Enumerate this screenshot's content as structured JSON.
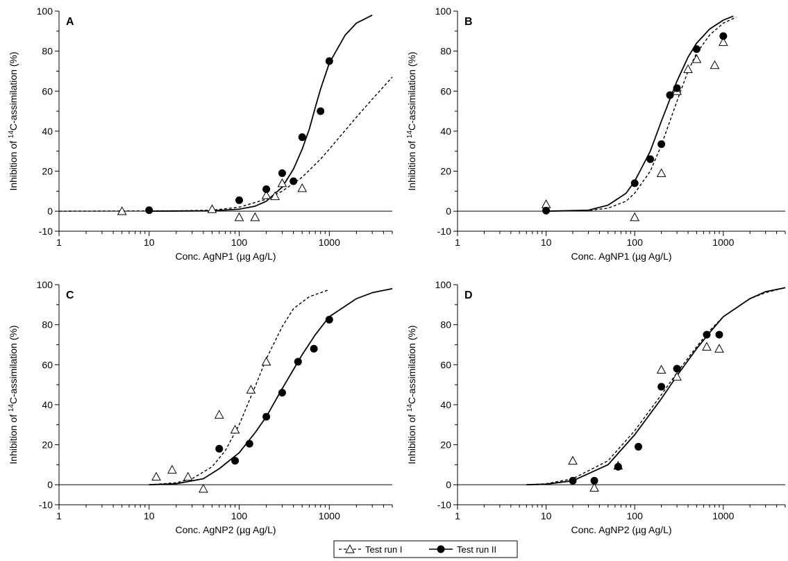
{
  "legend": {
    "series": [
      {
        "name": "Test run I",
        "marker": "open-triangle",
        "line": "dashed"
      },
      {
        "name": "Test run II",
        "marker": "filled-circle",
        "line": "solid"
      }
    ]
  },
  "chart_data": [
    {
      "type": "scatter",
      "panel": "A",
      "xlabel": "Conc. AgNP1 (µg Ag/L)",
      "ylabel_parts": [
        "Inhibition of ",
        "14",
        "C-assimilation (%)"
      ],
      "x_scale": "log",
      "xlim": [
        1,
        5000
      ],
      "x_ticks": [
        1,
        10,
        100,
        1000
      ],
      "x_tick_labels": [
        "1",
        "10",
        "100",
        "1000"
      ],
      "ylim": [
        -10,
        100
      ],
      "y_ticks": [
        -10,
        0,
        20,
        40,
        60,
        80,
        100
      ],
      "y_tick_labels": [
        "-10",
        "0",
        "20",
        "40",
        "60",
        "80",
        "100"
      ],
      "grid": false,
      "series": [
        {
          "name": "Test run I",
          "marker": "open-triangle",
          "line": "dashed",
          "points": [
            [
              5,
              0
            ],
            [
              50,
              1
            ],
            [
              100,
              -3
            ],
            [
              150,
              -3
            ],
            [
              200,
              8
            ],
            [
              250,
              7.5
            ],
            [
              300,
              14
            ],
            [
              500,
              11.5
            ]
          ],
          "fit": [
            [
              1,
              0
            ],
            [
              20,
              0.2
            ],
            [
              50,
              0.5
            ],
            [
              100,
              2
            ],
            [
              200,
              6
            ],
            [
              300,
              10
            ],
            [
              500,
              17
            ],
            [
              800,
              26
            ],
            [
              1000,
              31
            ],
            [
              2000,
              47
            ],
            [
              3000,
              56
            ],
            [
              5000,
              67
            ]
          ]
        },
        {
          "name": "Test run II",
          "marker": "filled-circle",
          "line": "solid",
          "points": [
            [
              10,
              0.5
            ],
            [
              100,
              5.5
            ],
            [
              200,
              11
            ],
            [
              300,
              19
            ],
            [
              400,
              15
            ],
            [
              500,
              37
            ],
            [
              800,
              50
            ],
            [
              1000,
              75
            ]
          ],
          "fit": [
            [
              10,
              0
            ],
            [
              50,
              0.2
            ],
            [
              100,
              1
            ],
            [
              150,
              2.5
            ],
            [
              200,
              5
            ],
            [
              300,
              12
            ],
            [
              400,
              21
            ],
            [
              500,
              31
            ],
            [
              600,
              41
            ],
            [
              700,
              52
            ],
            [
              800,
              61
            ],
            [
              1000,
              74
            ],
            [
              1500,
              88
            ],
            [
              2000,
              94
            ],
            [
              3000,
              98
            ]
          ]
        }
      ]
    },
    {
      "type": "scatter",
      "panel": "B",
      "xlabel": "Conc. AgNP1 (µg Ag/L)",
      "ylabel_parts": [
        "Inhibition of ",
        "14",
        "C-assimilation (%)"
      ],
      "x_scale": "log",
      "xlim": [
        1,
        5000
      ],
      "x_ticks": [
        1,
        10,
        100,
        1000
      ],
      "x_tick_labels": [
        "1",
        "10",
        "100",
        "1000"
      ],
      "ylim": [
        -10,
        100
      ],
      "y_ticks": [
        -10,
        0,
        20,
        40,
        60,
        80,
        100
      ],
      "y_tick_labels": [
        "-10",
        "0",
        "20",
        "40",
        "60",
        "80",
        "100"
      ],
      "grid": false,
      "series": [
        {
          "name": "Test run I",
          "marker": "open-triangle",
          "line": "dashed",
          "points": [
            [
              10,
              3.5
            ],
            [
              100,
              -3
            ],
            [
              200,
              19
            ],
            [
              300,
              60
            ],
            [
              400,
              71
            ],
            [
              500,
              76
            ],
            [
              800,
              73
            ],
            [
              1000,
              84.5
            ]
          ],
          "fit": [
            [
              10,
              0
            ],
            [
              30,
              0.3
            ],
            [
              50,
              1.5
            ],
            [
              80,
              5
            ],
            [
              100,
              9
            ],
            [
              150,
              20
            ],
            [
              200,
              33
            ],
            [
              300,
              55
            ],
            [
              400,
              70
            ],
            [
              500,
              79
            ],
            [
              700,
              88
            ],
            [
              1000,
              94
            ],
            [
              1400,
              97
            ]
          ]
        },
        {
          "name": "Test run II",
          "marker": "filled-circle",
          "line": "solid",
          "points": [
            [
              10,
              0.3
            ],
            [
              100,
              14
            ],
            [
              150,
              26
            ],
            [
              200,
              33.5
            ],
            [
              250,
              58
            ],
            [
              300,
              61.5
            ],
            [
              500,
              81
            ],
            [
              1000,
              87.5
            ]
          ],
          "fit": [
            [
              10,
              0
            ],
            [
              30,
              0.5
            ],
            [
              50,
              3
            ],
            [
              80,
              9
            ],
            [
              100,
              15
            ],
            [
              150,
              30
            ],
            [
              200,
              45
            ],
            [
              300,
              65
            ],
            [
              400,
              77
            ],
            [
              500,
              84
            ],
            [
              700,
              91
            ],
            [
              1000,
              95.5
            ],
            [
              1300,
              97.5
            ]
          ]
        }
      ]
    },
    {
      "type": "scatter",
      "panel": "C",
      "xlabel": "Conc. AgNP2 (µg Ag/L)",
      "ylabel_parts": [
        "Inhibition of ",
        "14",
        "C-assimilation (%)"
      ],
      "x_scale": "log",
      "xlim": [
        1,
        5000
      ],
      "x_ticks": [
        1,
        10,
        100,
        1000
      ],
      "x_tick_labels": [
        "1",
        "10",
        "100",
        "1000"
      ],
      "ylim": [
        -10,
        100
      ],
      "y_ticks": [
        -10,
        0,
        20,
        40,
        60,
        80,
        100
      ],
      "y_tick_labels": [
        "-10",
        "0",
        "20",
        "40",
        "60",
        "80",
        "100"
      ],
      "grid": false,
      "series": [
        {
          "name": "Test run I",
          "marker": "open-triangle",
          "line": "dashed",
          "points": [
            [
              12,
              4
            ],
            [
              18,
              7.5
            ],
            [
              27,
              4
            ],
            [
              40,
              -2
            ],
            [
              60,
              35
            ],
            [
              90,
              27.5
            ],
            [
              135,
              47.5
            ],
            [
              200,
              61.5
            ]
          ],
          "fit": [
            [
              10,
              0
            ],
            [
              20,
              1
            ],
            [
              30,
              3
            ],
            [
              50,
              9
            ],
            [
              70,
              17
            ],
            [
              100,
              30
            ],
            [
              150,
              49
            ],
            [
              200,
              63
            ],
            [
              300,
              79
            ],
            [
              400,
              88
            ],
            [
              600,
              94
            ],
            [
              1000,
              97.5
            ]
          ]
        },
        {
          "name": "Test run II",
          "marker": "filled-circle",
          "line": "solid",
          "points": [
            [
              60,
              18
            ],
            [
              90,
              12
            ],
            [
              130,
              20.5
            ],
            [
              200,
              34
            ],
            [
              300,
              46
            ],
            [
              450,
              61.5
            ],
            [
              675,
              68
            ],
            [
              1000,
              82.5
            ]
          ],
          "fit": [
            [
              10,
              0
            ],
            [
              20,
              0.5
            ],
            [
              40,
              3
            ],
            [
              60,
              8
            ],
            [
              100,
              16
            ],
            [
              150,
              26
            ],
            [
              200,
              34
            ],
            [
              300,
              48
            ],
            [
              500,
              65
            ],
            [
              700,
              75
            ],
            [
              1000,
              84
            ],
            [
              2000,
              93
            ],
            [
              3000,
              96
            ],
            [
              5000,
              98
            ]
          ]
        }
      ]
    },
    {
      "type": "scatter",
      "panel": "D",
      "xlabel": "Conc. AgNP2 (µg Ag/L)",
      "ylabel_parts": [
        "Inhibition of ",
        "14",
        "C-assimilation (%)"
      ],
      "x_scale": "log",
      "xlim": [
        1,
        5000
      ],
      "x_ticks": [
        1,
        10,
        100,
        1000
      ],
      "x_tick_labels": [
        "1",
        "10",
        "100",
        "1000"
      ],
      "ylim": [
        -10,
        100
      ],
      "y_ticks": [
        -10,
        0,
        20,
        40,
        60,
        80,
        100
      ],
      "y_tick_labels": [
        "-10",
        "0",
        "20",
        "40",
        "60",
        "80",
        "100"
      ],
      "grid": false,
      "series": [
        {
          "name": "Test run I",
          "marker": "open-triangle",
          "line": "dashed",
          "points": [
            [
              20,
              12
            ],
            [
              35,
              -1.5
            ],
            [
              65,
              9.5
            ],
            [
              200,
              57.5
            ],
            [
              300,
              54
            ],
            [
              650,
              69
            ],
            [
              900,
              68
            ]
          ],
          "fit": [
            [
              6,
              0
            ],
            [
              10,
              0.5
            ],
            [
              20,
              3
            ],
            [
              50,
              12
            ],
            [
              100,
              27
            ],
            [
              200,
              45
            ],
            [
              300,
              56
            ],
            [
              500,
              69
            ],
            [
              700,
              77
            ],
            [
              1000,
              84
            ],
            [
              2000,
              93
            ],
            [
              3000,
              96
            ],
            [
              5000,
              98.5
            ]
          ]
        },
        {
          "name": "Test run II",
          "marker": "filled-circle",
          "line": "solid",
          "points": [
            [
              20,
              2
            ],
            [
              35,
              2
            ],
            [
              65,
              9
            ],
            [
              110,
              19
            ],
            [
              200,
              49
            ],
            [
              300,
              58
            ],
            [
              650,
              75
            ],
            [
              900,
              75
            ]
          ],
          "fit": [
            [
              6,
              0
            ],
            [
              10,
              0.3
            ],
            [
              20,
              2
            ],
            [
              50,
              10
            ],
            [
              100,
              25
            ],
            [
              200,
              43
            ],
            [
              300,
              54.5
            ],
            [
              500,
              68
            ],
            [
              700,
              76
            ],
            [
              1000,
              84
            ],
            [
              2000,
              93
            ],
            [
              3000,
              96.5
            ],
            [
              5000,
              98.5
            ]
          ]
        }
      ]
    }
  ]
}
